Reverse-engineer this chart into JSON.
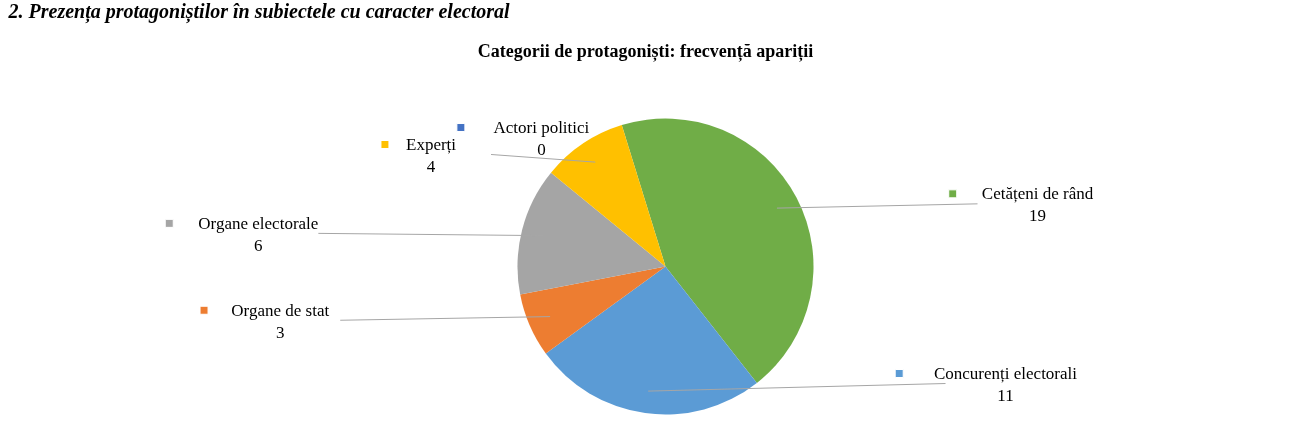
{
  "chart_data": {
    "type": "pie",
    "title": "Categorii de protagoniști: frecvență apariții",
    "annotations": [
      "2.    Prezența protagoniștilor în subiectele cu caracter electoral"
    ],
    "categories": [
      "Actori politici",
      "Cetățeni de rând",
      "Concurenți electorali",
      "Organe de stat",
      "Organe electorale",
      "Experți"
    ],
    "values": [
      0,
      19,
      11,
      3,
      6,
      4
    ],
    "colors": [
      "#4472c4",
      "#70ad47",
      "#5b9bd5",
      "#ed7d31",
      "#a5a5a5",
      "#ffc000"
    ],
    "value_labels": [
      "0",
      "19",
      "11",
      "3",
      "6",
      "4"
    ],
    "legend": "left"
  }
}
